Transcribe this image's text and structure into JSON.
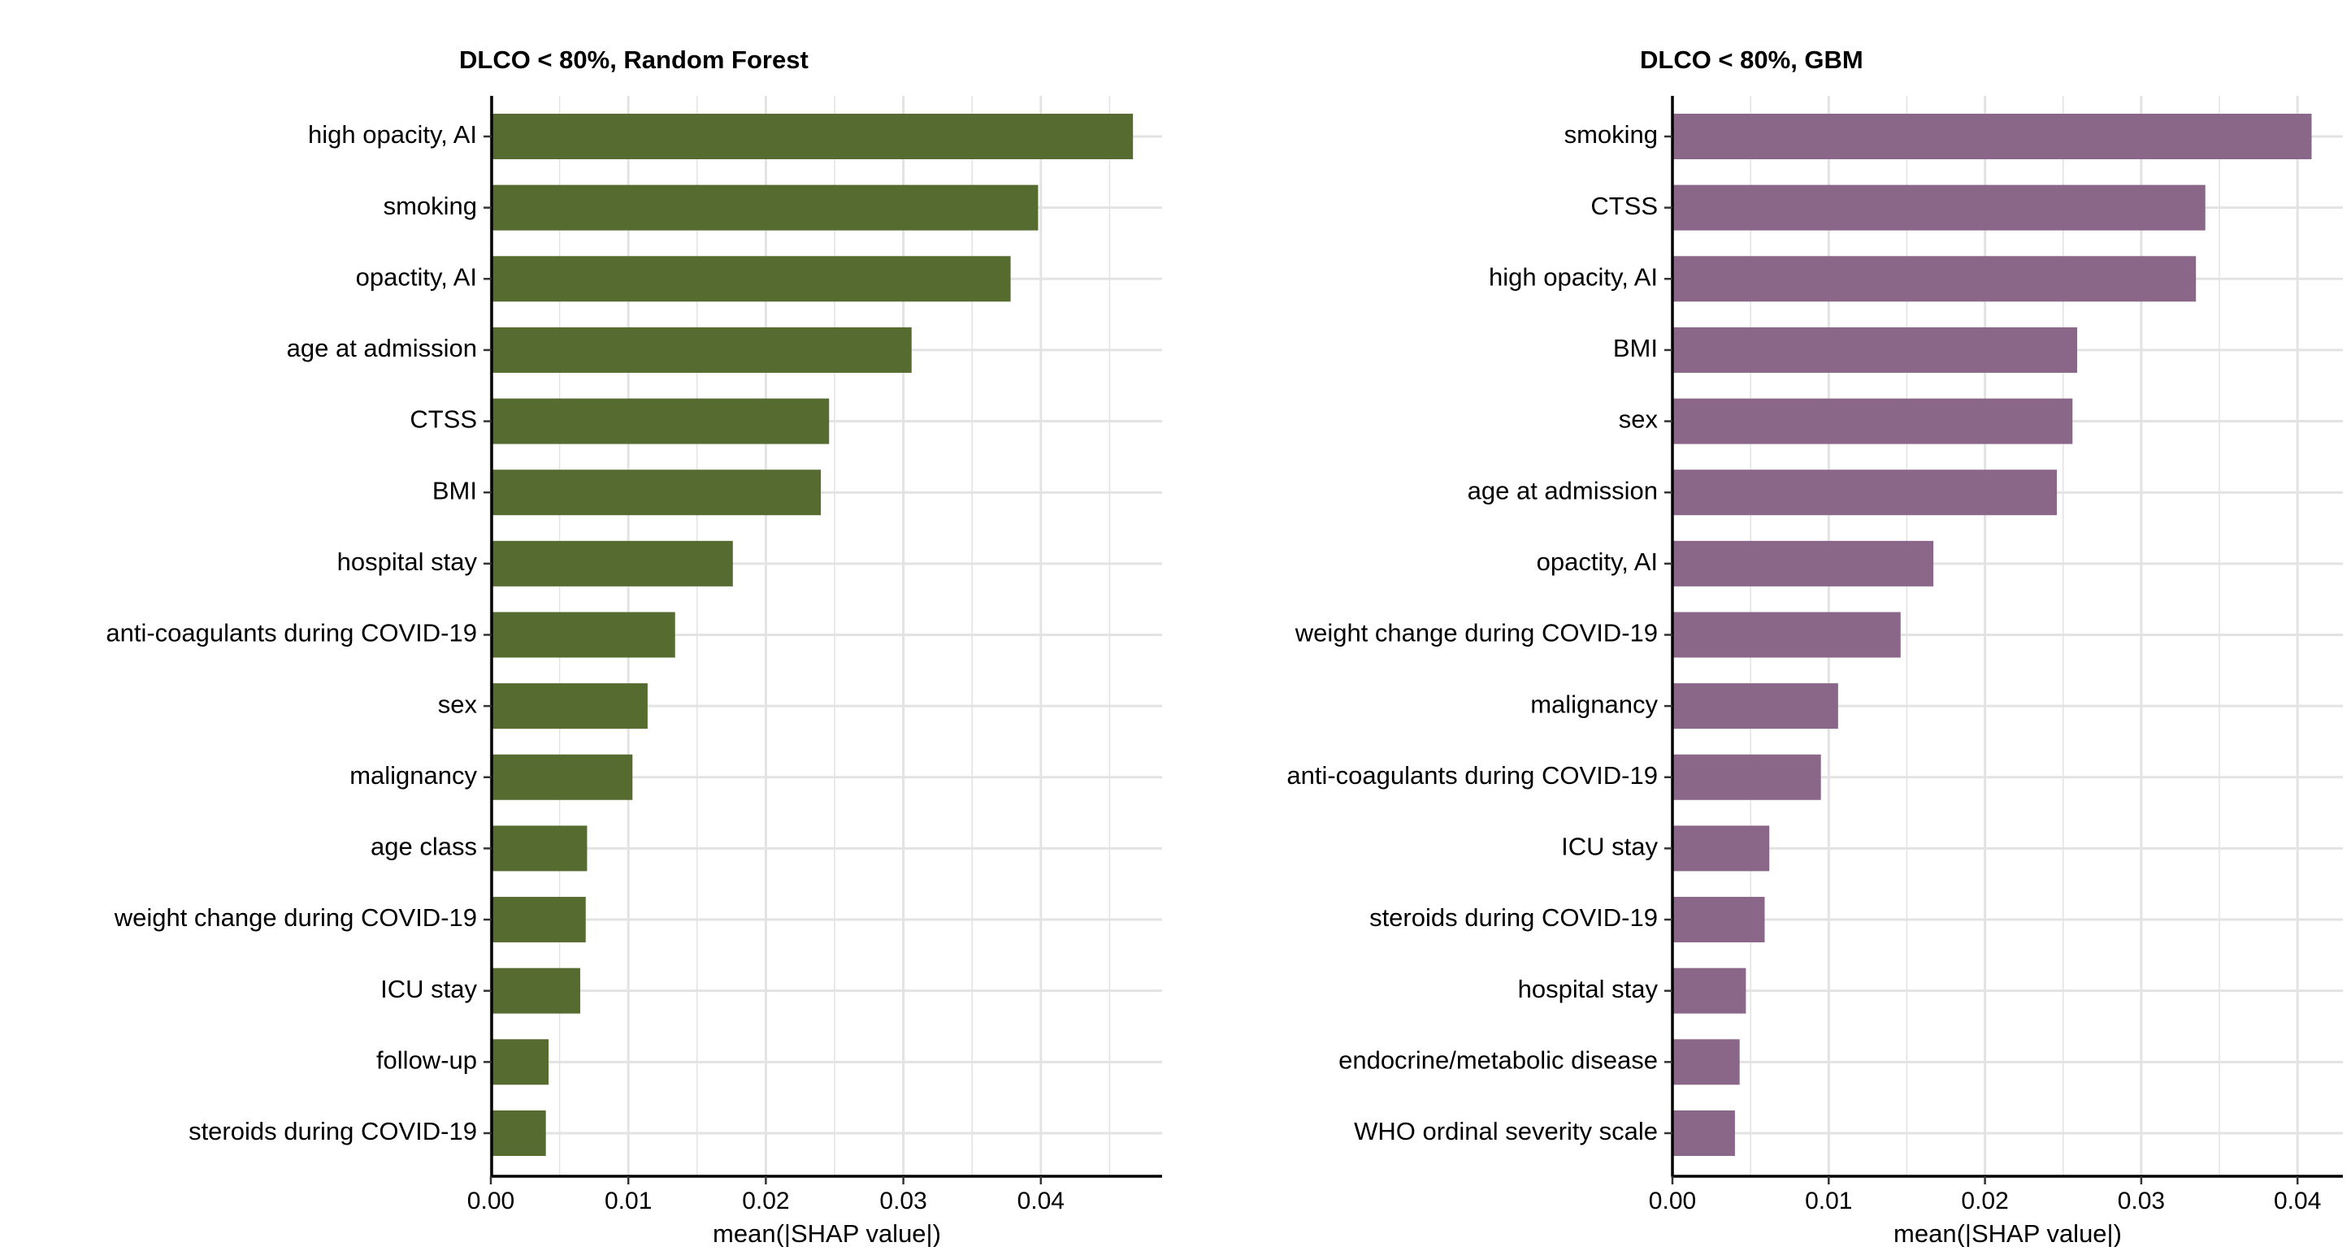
{
  "chart_data": [
    {
      "type": "bar",
      "orientation": "horizontal",
      "title": "DLCO < 80%, Random Forest",
      "xlabel": "mean(|SHAP value|)",
      "ylabel": "",
      "color": "#556B2F",
      "xlim": [
        0,
        0.047
      ],
      "xticks": [
        0.0,
        0.01,
        0.02,
        0.03,
        0.04
      ],
      "xtick_labels": [
        "0.00",
        "0.01",
        "0.02",
        "0.03",
        "0.04"
      ],
      "grid": true,
      "categories": [
        "high opacity, AI",
        "smoking",
        "opactity, AI",
        "age at admission",
        "CTSS",
        "BMI",
        "hospital stay",
        "anti-coagulants during COVID-19",
        "sex",
        "malignancy",
        "age class",
        "weight change during COVID-19",
        "ICU stay",
        "follow-up",
        "steroids during COVID-19"
      ],
      "values": [
        0.0467,
        0.0398,
        0.0378,
        0.0306,
        0.0246,
        0.024,
        0.0176,
        0.0134,
        0.0114,
        0.0103,
        0.007,
        0.0069,
        0.0065,
        0.0042,
        0.004
      ]
    },
    {
      "type": "bar",
      "orientation": "horizontal",
      "title": "DLCO < 80%, GBM",
      "xlabel": "mean(|SHAP value|)",
      "ylabel": "",
      "color": "#8A6688",
      "xlim": [
        0,
        0.041
      ],
      "xticks": [
        0.0,
        0.01,
        0.02,
        0.03,
        0.04
      ],
      "xtick_labels": [
        "0.00",
        "0.01",
        "0.02",
        "0.03",
        "0.04"
      ],
      "grid": true,
      "categories": [
        "smoking",
        "CTSS",
        "high opacity, AI",
        "BMI",
        "sex",
        "age at admission",
        "opactity, AI",
        "weight change during COVID-19",
        "malignancy",
        "anti-coagulants during COVID-19",
        "ICU stay",
        "steroids during COVID-19",
        "hospital stay",
        "endocrine/metabolic disease",
        "WHO ordinal severity scale"
      ],
      "values": [
        0.0409,
        0.0341,
        0.0335,
        0.0259,
        0.0256,
        0.0246,
        0.0167,
        0.0146,
        0.0106,
        0.0095,
        0.0062,
        0.0059,
        0.0047,
        0.0043,
        0.004
      ]
    }
  ]
}
